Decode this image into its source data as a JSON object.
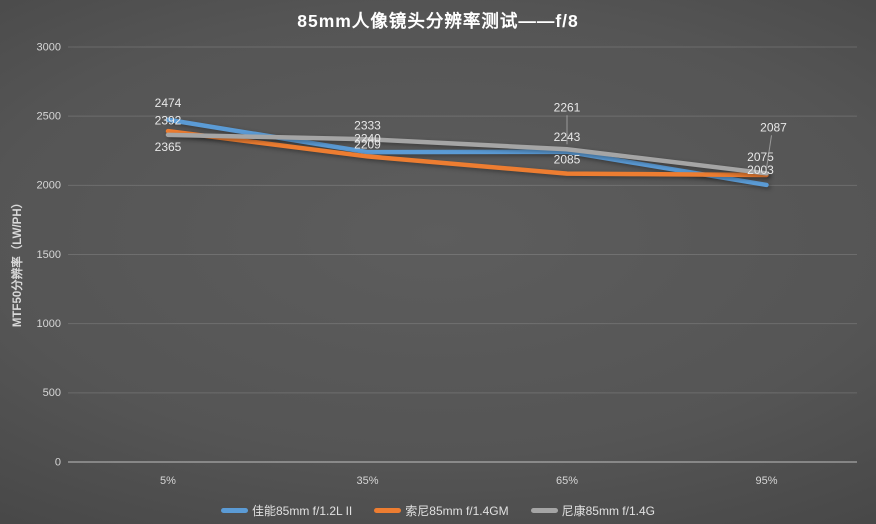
{
  "title": "85mm人像镜头分辨率测试——f/8",
  "chart_data": {
    "type": "line",
    "title": "85mm人像镜头分辨率测试——f/8",
    "categories": [
      "5%",
      "35%",
      "65%",
      "95%"
    ],
    "series": [
      {
        "name": "佳能85mm f/1.2L II",
        "color": "#5B9BD5",
        "values": [
          2474,
          2240,
          2243,
          2003
        ]
      },
      {
        "name": "索尼85mm f/1.4GM",
        "color": "#ED7D31",
        "values": [
          2392,
          2209,
          2085,
          2075
        ]
      },
      {
        "name": "尼康85mm f/1.4G",
        "color": "#A5A5A5",
        "values": [
          2365,
          2333,
          2261,
          2087
        ]
      }
    ],
    "xlabel": "",
    "ylabel": "MTF50分辨率（LW/PH）",
    "ylim": [
      0,
      3000
    ],
    "yticks": [
      0,
      500,
      1000,
      1500,
      2000,
      2500,
      3000
    ],
    "grid": true,
    "data_labels": true,
    "legend_position": "bottom"
  },
  "style": {
    "series_blue": "#5B9BD5",
    "series_orange": "#ED7D31",
    "series_gray": "#A5A5A5",
    "title_color": "#FFFFFF",
    "label_color": "#E8E8E8",
    "background_center": "#5A5A5A",
    "background_edge": "#2B2B2B"
  }
}
